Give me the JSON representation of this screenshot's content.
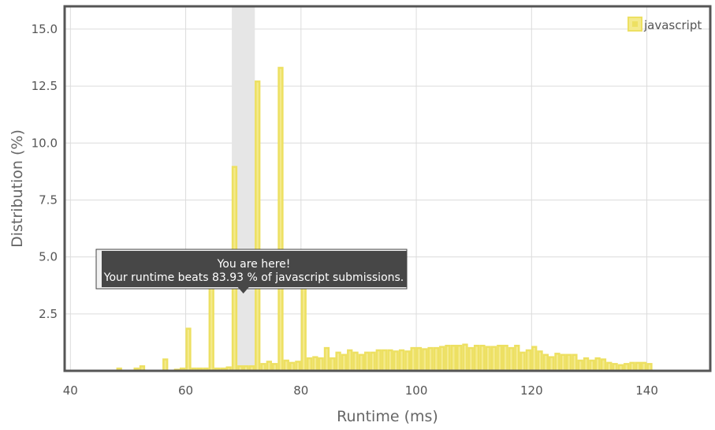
{
  "chart_data": {
    "type": "bar",
    "xlabel": "Runtime (ms)",
    "ylabel": "Distribution (%)",
    "xlim": [
      39,
      151
    ],
    "ylim": [
      0,
      16
    ],
    "x_ticks": [
      40,
      60,
      80,
      100,
      120,
      140
    ],
    "y_ticks": [
      2.5,
      5.0,
      7.5,
      10.0,
      12.5,
      15.0
    ],
    "x_tick_labels": [
      "40",
      "60",
      "80",
      "100",
      "120",
      "140"
    ],
    "y_tick_labels": [
      "2.5",
      "5.0",
      "7.5",
      "10.0",
      "12.5",
      "15.0"
    ],
    "grid": true,
    "bar_width": 1,
    "series": [
      {
        "name": "javascript",
        "color": "#f0e060",
        "points": [
          {
            "x": 48,
            "y": 0.1
          },
          {
            "x": 51,
            "y": 0.1
          },
          {
            "x": 52,
            "y": 0.2
          },
          {
            "x": 56,
            "y": 0.5
          },
          {
            "x": 58,
            "y": 0.05
          },
          {
            "x": 59,
            "y": 0.1
          },
          {
            "x": 60,
            "y": 1.85
          },
          {
            "x": 61,
            "y": 0.1
          },
          {
            "x": 62,
            "y": 0.1
          },
          {
            "x": 63,
            "y": 0.1
          },
          {
            "x": 64,
            "y": 4.3
          },
          {
            "x": 65,
            "y": 0.1
          },
          {
            "x": 66,
            "y": 0.1
          },
          {
            "x": 67,
            "y": 0.15
          },
          {
            "x": 68,
            "y": 8.95
          },
          {
            "x": 69,
            "y": 0.2
          },
          {
            "x": 70,
            "y": 0.2
          },
          {
            "x": 71,
            "y": 0.2
          },
          {
            "x": 72,
            "y": 12.7
          },
          {
            "x": 73,
            "y": 0.3
          },
          {
            "x": 74,
            "y": 0.4
          },
          {
            "x": 75,
            "y": 0.3
          },
          {
            "x": 76,
            "y": 13.3
          },
          {
            "x": 77,
            "y": 0.45
          },
          {
            "x": 78,
            "y": 0.35
          },
          {
            "x": 79,
            "y": 0.4
          },
          {
            "x": 80,
            "y": 4.65
          },
          {
            "x": 81,
            "y": 0.55
          },
          {
            "x": 82,
            "y": 0.6
          },
          {
            "x": 83,
            "y": 0.55
          },
          {
            "x": 84,
            "y": 1.0
          },
          {
            "x": 85,
            "y": 0.55
          },
          {
            "x": 86,
            "y": 0.8
          },
          {
            "x": 87,
            "y": 0.7
          },
          {
            "x": 88,
            "y": 0.9
          },
          {
            "x": 89,
            "y": 0.8
          },
          {
            "x": 90,
            "y": 0.7
          },
          {
            "x": 91,
            "y": 0.8
          },
          {
            "x": 92,
            "y": 0.8
          },
          {
            "x": 93,
            "y": 0.9
          },
          {
            "x": 94,
            "y": 0.9
          },
          {
            "x": 95,
            "y": 0.9
          },
          {
            "x": 96,
            "y": 0.85
          },
          {
            "x": 97,
            "y": 0.9
          },
          {
            "x": 98,
            "y": 0.85
          },
          {
            "x": 99,
            "y": 1.0
          },
          {
            "x": 100,
            "y": 1.0
          },
          {
            "x": 101,
            "y": 0.95
          },
          {
            "x": 102,
            "y": 1.0
          },
          {
            "x": 103,
            "y": 1.0
          },
          {
            "x": 104,
            "y": 1.05
          },
          {
            "x": 105,
            "y": 1.1
          },
          {
            "x": 106,
            "y": 1.1
          },
          {
            "x": 107,
            "y": 1.1
          },
          {
            "x": 108,
            "y": 1.15
          },
          {
            "x": 109,
            "y": 1.0
          },
          {
            "x": 110,
            "y": 1.1
          },
          {
            "x": 111,
            "y": 1.1
          },
          {
            "x": 112,
            "y": 1.05
          },
          {
            "x": 113,
            "y": 1.05
          },
          {
            "x": 114,
            "y": 1.1
          },
          {
            "x": 115,
            "y": 1.1
          },
          {
            "x": 116,
            "y": 1.0
          },
          {
            "x": 117,
            "y": 1.1
          },
          {
            "x": 118,
            "y": 0.8
          },
          {
            "x": 119,
            "y": 0.9
          },
          {
            "x": 120,
            "y": 1.05
          },
          {
            "x": 121,
            "y": 0.85
          },
          {
            "x": 122,
            "y": 0.7
          },
          {
            "x": 123,
            "y": 0.6
          },
          {
            "x": 124,
            "y": 0.75
          },
          {
            "x": 125,
            "y": 0.7
          },
          {
            "x": 126,
            "y": 0.7
          },
          {
            "x": 127,
            "y": 0.7
          },
          {
            "x": 128,
            "y": 0.45
          },
          {
            "x": 129,
            "y": 0.55
          },
          {
            "x": 130,
            "y": 0.45
          },
          {
            "x": 131,
            "y": 0.55
          },
          {
            "x": 132,
            "y": 0.5
          },
          {
            "x": 133,
            "y": 0.35
          },
          {
            "x": 134,
            "y": 0.3
          },
          {
            "x": 135,
            "y": 0.25
          },
          {
            "x": 136,
            "y": 0.3
          },
          {
            "x": 137,
            "y": 0.35
          },
          {
            "x": 138,
            "y": 0.35
          },
          {
            "x": 139,
            "y": 0.35
          },
          {
            "x": 140,
            "y": 0.3
          }
        ]
      }
    ],
    "highlight": {
      "x": 70,
      "from": 68,
      "to": 72,
      "color": "#e6e6e6"
    },
    "legend": {
      "placement": "top-right",
      "entries": [
        "javascript"
      ]
    },
    "tooltip": {
      "line1": "You are here!",
      "line2": "Your runtime beats 83.93 % of javascript submissions."
    }
  },
  "colors": {
    "bar_fill": "#f4ea8c",
    "bar_stroke": "#ede062",
    "frame": "#555555",
    "tooltip_bg": "#474747"
  }
}
